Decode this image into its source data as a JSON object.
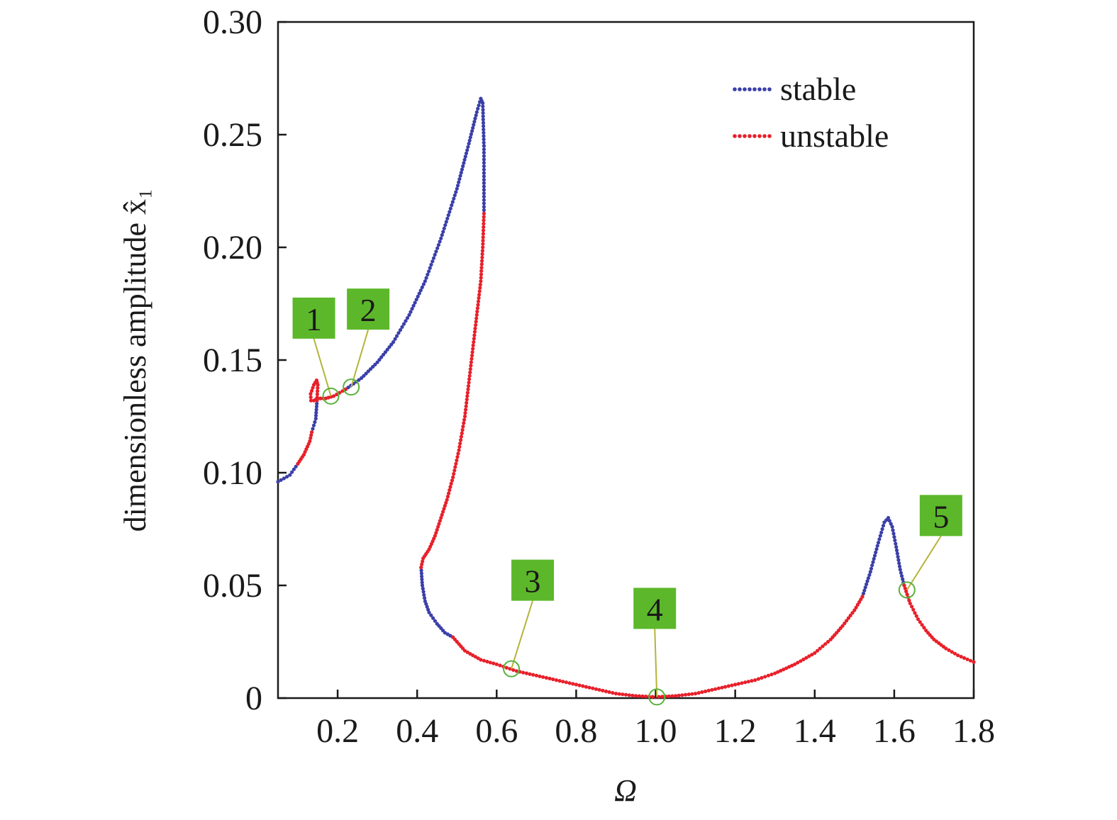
{
  "chart_data": {
    "type": "scatter",
    "xlabel": "Ω",
    "ylabel": "dimensionless amplitude x̂₁",
    "xlim": [
      0.05,
      1.8
    ],
    "ylim": [
      0,
      0.3
    ],
    "xticks": [
      {
        "value": 0.2,
        "label": "0.2"
      },
      {
        "value": 0.4,
        "label": "0.4"
      },
      {
        "value": 0.6,
        "label": "0.6"
      },
      {
        "value": 0.8,
        "label": "0.8"
      },
      {
        "value": 1.0,
        "label": "1.0"
      },
      {
        "value": 1.2,
        "label": "1.2"
      },
      {
        "value": 1.4,
        "label": "1.4"
      },
      {
        "value": 1.6,
        "label": "1.6"
      },
      {
        "value": 1.8,
        "label": "1.8"
      }
    ],
    "yticks": [
      {
        "value": 0,
        "label": "0"
      },
      {
        "value": 0.05,
        "label": "0.05"
      },
      {
        "value": 0.1,
        "label": "0.10"
      },
      {
        "value": 0.15,
        "label": "0.15"
      },
      {
        "value": 0.2,
        "label": "0.20"
      },
      {
        "value": 0.25,
        "label": "0.25"
      },
      {
        "value": 0.3,
        "label": "0.30"
      }
    ],
    "grid": false,
    "legend": {
      "placement": "top-right",
      "entries": [
        {
          "label": "stable",
          "color": "#3a3fa8"
        },
        {
          "label": "unstable",
          "color": "#e8202a"
        }
      ]
    },
    "series": [
      {
        "name": "stable",
        "color": "#3a3fa8",
        "segments": [
          [
            [
              0.05,
              0.096
            ],
            [
              0.08,
              0.099
            ],
            [
              0.1,
              0.104
            ]
          ],
          [
            [
              0.135,
              0.118
            ],
            [
              0.145,
              0.124
            ],
            [
              0.148,
              0.132
            ]
          ],
          [
            [
              0.22,
              0.137
            ],
            [
              0.26,
              0.142
            ],
            [
              0.3,
              0.149
            ],
            [
              0.34,
              0.158
            ],
            [
              0.38,
              0.17
            ],
            [
              0.42,
              0.185
            ],
            [
              0.46,
              0.204
            ],
            [
              0.5,
              0.226
            ],
            [
              0.53,
              0.246
            ],
            [
              0.55,
              0.26
            ],
            [
              0.56,
              0.266
            ],
            [
              0.565,
              0.264
            ],
            [
              0.568,
              0.245
            ],
            [
              0.568,
              0.215
            ]
          ],
          [
            [
              0.41,
              0.058
            ],
            [
              0.413,
              0.05
            ],
            [
              0.42,
              0.043
            ],
            [
              0.43,
              0.038
            ],
            [
              0.45,
              0.033
            ],
            [
              0.47,
              0.029
            ],
            [
              0.49,
              0.027
            ]
          ],
          [
            [
              1.52,
              0.045
            ],
            [
              1.54,
              0.056
            ],
            [
              1.56,
              0.069
            ],
            [
              1.575,
              0.078
            ],
            [
              1.585,
              0.08
            ],
            [
              1.595,
              0.076
            ],
            [
              1.605,
              0.067
            ],
            [
              1.615,
              0.057
            ],
            [
              1.625,
              0.05
            ]
          ]
        ]
      },
      {
        "name": "unstable",
        "color": "#e8202a",
        "segments": [
          [
            [
              0.1,
              0.104
            ],
            [
              0.115,
              0.108
            ],
            [
              0.13,
              0.114
            ],
            [
              0.135,
              0.118
            ]
          ],
          [
            [
              0.148,
              0.132
            ],
            [
              0.15,
              0.139
            ],
            [
              0.147,
              0.141
            ],
            [
              0.14,
              0.139
            ],
            [
              0.132,
              0.135
            ],
            [
              0.133,
              0.132
            ],
            [
              0.14,
              0.132
            ],
            [
              0.15,
              0.133
            ],
            [
              0.17,
              0.133
            ],
            [
              0.19,
              0.134
            ],
            [
              0.22,
              0.137
            ]
          ],
          [
            [
              0.568,
              0.215
            ],
            [
              0.565,
              0.2
            ],
            [
              0.56,
              0.185
            ],
            [
              0.55,
              0.17
            ],
            [
              0.54,
              0.155
            ],
            [
              0.53,
              0.14
            ],
            [
              0.52,
              0.125
            ],
            [
              0.505,
              0.11
            ],
            [
              0.49,
              0.098
            ],
            [
              0.475,
              0.088
            ],
            [
              0.46,
              0.08
            ],
            [
              0.445,
              0.072
            ],
            [
              0.43,
              0.066
            ],
            [
              0.415,
              0.062
            ],
            [
              0.41,
              0.058
            ]
          ],
          [
            [
              0.49,
              0.027
            ],
            [
              0.52,
              0.021
            ],
            [
              0.56,
              0.017
            ],
            [
              0.6,
              0.015
            ],
            [
              0.65,
              0.012
            ],
            [
              0.7,
              0.01
            ],
            [
              0.75,
              0.008
            ],
            [
              0.8,
              0.006
            ],
            [
              0.85,
              0.004
            ],
            [
              0.9,
              0.002
            ],
            [
              0.95,
              0.001
            ],
            [
              1.0,
              0.0005
            ],
            [
              1.05,
              0.001
            ],
            [
              1.1,
              0.002
            ],
            [
              1.15,
              0.004
            ],
            [
              1.2,
              0.006
            ],
            [
              1.25,
              0.008
            ],
            [
              1.3,
              0.011
            ],
            [
              1.35,
              0.015
            ],
            [
              1.4,
              0.02
            ],
            [
              1.44,
              0.026
            ],
            [
              1.47,
              0.032
            ],
            [
              1.5,
              0.039
            ],
            [
              1.52,
              0.045
            ]
          ],
          [
            [
              1.625,
              0.05
            ],
            [
              1.64,
              0.042
            ],
            [
              1.66,
              0.035
            ],
            [
              1.68,
              0.03
            ],
            [
              1.7,
              0.026
            ],
            [
              1.73,
              0.022
            ],
            [
              1.76,
              0.019
            ],
            [
              1.8,
              0.016
            ]
          ]
        ]
      }
    ],
    "annotations": [
      {
        "label": "1",
        "x": 0.183,
        "y": 0.134
      },
      {
        "label": "2",
        "x": 0.234,
        "y": 0.138
      },
      {
        "label": "3",
        "x": 0.637,
        "y": 0.013
      },
      {
        "label": "4",
        "x": 1.003,
        "y": 0.0005
      },
      {
        "label": "5",
        "x": 1.632,
        "y": 0.048
      }
    ]
  }
}
